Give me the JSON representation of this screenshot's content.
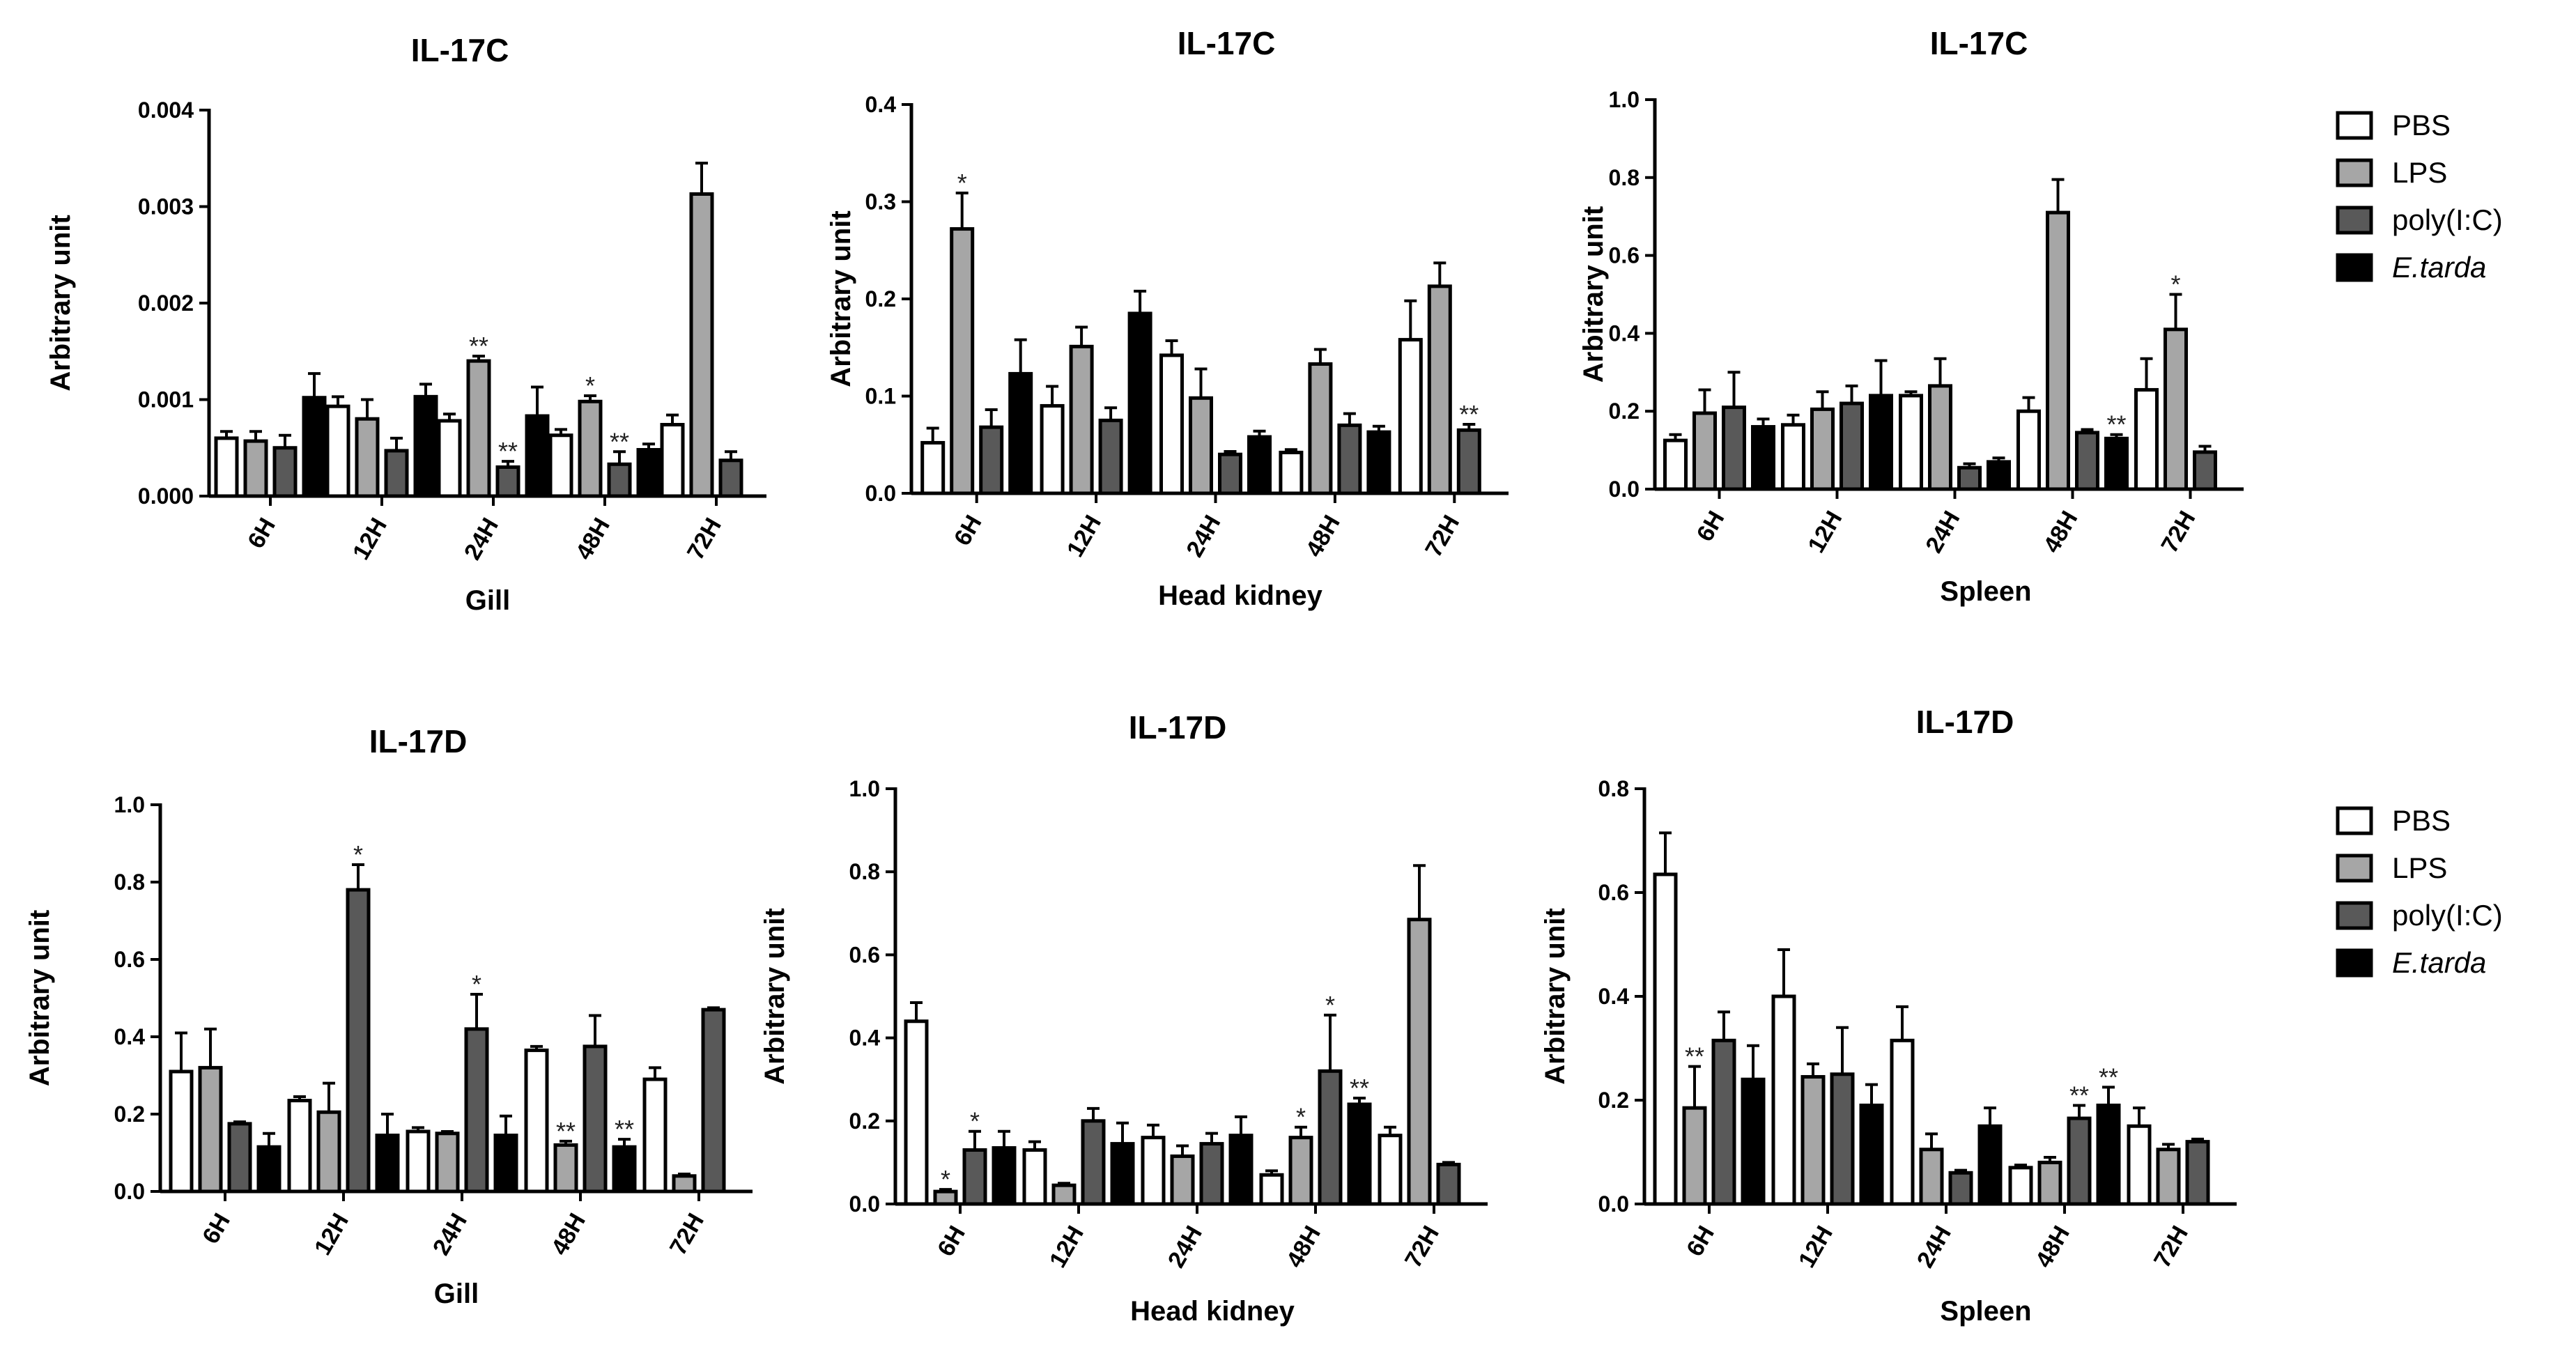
{
  "colors": {
    "PBS": "#ffffff",
    "LPS": "#a6a6a6",
    "poly(I:C)": "#595959",
    "E.tarda": "#000000",
    "axis": "#000000"
  },
  "legends": [
    {
      "entries": [
        "PBS",
        "LPS",
        "poly(I:C)",
        "E.tarda"
      ]
    },
    {
      "entries": [
        "PBS",
        "LPS",
        "poly(I:C)",
        "E.tarda"
      ]
    }
  ],
  "chart_data": [
    {
      "type": "bar",
      "title": "IL-17C",
      "xlabel": "Gill",
      "ylabel": "Arbitrary unit",
      "ylim": [
        0,
        0.004
      ],
      "yticks": [
        0,
        0.001,
        0.002,
        0.003,
        0.004
      ],
      "ytick_labels": [
        "0.000",
        "0.001",
        "0.002",
        "0.003",
        "0.004"
      ],
      "categories": [
        "6H",
        "12H",
        "24H",
        "48H",
        "72H"
      ],
      "series": [
        {
          "name": "PBS",
          "values": [
            0.0006,
            0.00093,
            0.00078,
            0.00063,
            0.00074
          ],
          "errors": [
            7e-05,
            0.0001,
            7e-05,
            6e-05,
            0.0001
          ],
          "stars": [
            "",
            "",
            "",
            "",
            ""
          ]
        },
        {
          "name": "LPS",
          "values": [
            0.00057,
            0.0008,
            0.0014,
            0.00098,
            0.00313
          ],
          "errors": [
            0.0001,
            0.0002,
            5e-05,
            6e-05,
            0.00032
          ],
          "stars": [
            "",
            "",
            "**",
            "*",
            ""
          ]
        },
        {
          "name": "poly(I:C)",
          "values": [
            0.0005,
            0.00047,
            0.0003,
            0.00033,
            0.00037
          ],
          "errors": [
            0.00013,
            0.00013,
            6e-05,
            0.00013,
            9e-05
          ],
          "stars": [
            "",
            "",
            "**",
            "**",
            ""
          ]
        },
        {
          "name": "E.tarda",
          "values": [
            0.00102,
            0.00103,
            0.00083,
            0.00048,
            null
          ],
          "errors": [
            0.00025,
            0.00013,
            0.0003,
            6e-05,
            null
          ],
          "stars": [
            "",
            "",
            "",
            "",
            ""
          ]
        }
      ]
    },
    {
      "type": "bar",
      "title": "IL-17C",
      "xlabel": "Head kidney",
      "ylabel": "Arbitrary unit",
      "ylim": [
        0,
        0.4
      ],
      "yticks": [
        0,
        0.1,
        0.2,
        0.3,
        0.4
      ],
      "ytick_labels": [
        "0.0",
        "0.1",
        "0.2",
        "0.3",
        "0.4"
      ],
      "categories": [
        "6H",
        "12H",
        "24H",
        "48H",
        "72H"
      ],
      "series": [
        {
          "name": "PBS",
          "values": [
            0.052,
            0.09,
            0.142,
            0.042,
            0.158
          ],
          "errors": [
            0.015,
            0.02,
            0.015,
            0.003,
            0.04
          ],
          "stars": [
            "",
            "",
            "",
            "",
            ""
          ]
        },
        {
          "name": "LPS",
          "values": [
            0.272,
            0.151,
            0.098,
            0.133,
            0.213
          ],
          "errors": [
            0.037,
            0.02,
            0.03,
            0.015,
            0.024
          ],
          "stars": [
            "*",
            "",
            "",
            "",
            ""
          ]
        },
        {
          "name": "poly(I:C)",
          "values": [
            0.068,
            0.075,
            0.04,
            0.07,
            0.065
          ],
          "errors": [
            0.018,
            0.013,
            0.003,
            0.012,
            0.006
          ],
          "stars": [
            "",
            "",
            "",
            "",
            "**"
          ]
        },
        {
          "name": "E.tarda",
          "values": [
            0.123,
            0.185,
            0.058,
            0.063,
            null
          ],
          "errors": [
            0.035,
            0.023,
            0.006,
            0.006,
            null
          ],
          "stars": [
            "",
            "",
            "",
            "",
            ""
          ]
        }
      ]
    },
    {
      "type": "bar",
      "title": "IL-17C",
      "xlabel": "Spleen",
      "ylabel": "Arbitrary unit",
      "ylim": [
        0,
        1.0
      ],
      "yticks": [
        0,
        0.2,
        0.4,
        0.6,
        0.8,
        1.0
      ],
      "ytick_labels": [
        "0.0",
        "0.2",
        "0.4",
        "0.6",
        "0.8",
        "1.0"
      ],
      "categories": [
        "6H",
        "12H",
        "24H",
        "48H",
        "72H"
      ],
      "series": [
        {
          "name": "PBS",
          "values": [
            0.125,
            0.165,
            0.24,
            0.2,
            0.255
          ],
          "errors": [
            0.015,
            0.025,
            0.01,
            0.035,
            0.08
          ],
          "stars": [
            "",
            "",
            "",
            "",
            ""
          ]
        },
        {
          "name": "LPS",
          "values": [
            0.195,
            0.205,
            0.265,
            0.71,
            0.41
          ],
          "errors": [
            0.06,
            0.045,
            0.07,
            0.085,
            0.09
          ],
          "stars": [
            "",
            "",
            "",
            "",
            "*"
          ]
        },
        {
          "name": "poly(I:C)",
          "values": [
            0.21,
            0.22,
            0.055,
            0.145,
            0.095
          ],
          "errors": [
            0.09,
            0.045,
            0.01,
            0.008,
            0.015
          ],
          "stars": [
            "",
            "",
            "",
            "",
            ""
          ]
        },
        {
          "name": "E.tarda",
          "values": [
            0.16,
            0.24,
            0.07,
            0.13,
            null
          ],
          "errors": [
            0.02,
            0.09,
            0.01,
            0.01,
            null
          ],
          "stars": [
            "",
            "",
            "",
            "**",
            ""
          ]
        }
      ]
    },
    {
      "type": "bar",
      "title": "IL-17D",
      "xlabel": "Gill",
      "ylabel": "Arbitrary unit",
      "ylim": [
        0,
        1.0
      ],
      "yticks": [
        0,
        0.2,
        0.4,
        0.6,
        0.8,
        1.0
      ],
      "ytick_labels": [
        "0.0",
        "0.2",
        "0.4",
        "0.6",
        "0.8",
        "1.0"
      ],
      "categories": [
        "6H",
        "12H",
        "24H",
        "48H",
        "72H"
      ],
      "series": [
        {
          "name": "PBS",
          "values": [
            0.31,
            0.235,
            0.155,
            0.365,
            0.29
          ],
          "errors": [
            0.1,
            0.01,
            0.01,
            0.01,
            0.03
          ],
          "stars": [
            "",
            "",
            "",
            "",
            ""
          ]
        },
        {
          "name": "LPS",
          "values": [
            0.32,
            0.205,
            0.15,
            0.12,
            0.04
          ],
          "errors": [
            0.1,
            0.075,
            0.005,
            0.01,
            0.005
          ],
          "stars": [
            "",
            "",
            "",
            "**",
            ""
          ]
        },
        {
          "name": "poly(I:C)",
          "values": [
            0.175,
            0.78,
            0.42,
            0.375,
            0.47
          ],
          "errors": [
            0.005,
            0.065,
            0.09,
            0.08,
            0.005
          ],
          "stars": [
            "",
            "*",
            "*",
            "",
            ""
          ]
        },
        {
          "name": "E.tarda",
          "values": [
            0.115,
            0.145,
            0.145,
            0.115,
            null
          ],
          "errors": [
            0.035,
            0.055,
            0.05,
            0.02,
            null
          ],
          "stars": [
            "",
            "",
            "",
            "**",
            ""
          ]
        }
      ]
    },
    {
      "type": "bar",
      "title": "IL-17D",
      "xlabel": "Head kidney",
      "ylabel": "Arbitrary unit",
      "ylim": [
        0,
        1.0
      ],
      "yticks": [
        0,
        0.2,
        0.4,
        0.6,
        0.8,
        1.0
      ],
      "ytick_labels": [
        "0.0",
        "0.2",
        "0.4",
        "0.6",
        "0.8",
        "1.0"
      ],
      "categories": [
        "6H",
        "12H",
        "24H",
        "48H",
        "72H"
      ],
      "series": [
        {
          "name": "PBS",
          "values": [
            0.44,
            0.13,
            0.16,
            0.07,
            0.165
          ],
          "errors": [
            0.045,
            0.02,
            0.03,
            0.01,
            0.02
          ],
          "stars": [
            "",
            "",
            "",
            "",
            ""
          ]
        },
        {
          "name": "LPS",
          "values": [
            0.03,
            0.045,
            0.115,
            0.16,
            0.685
          ],
          "errors": [
            0.005,
            0.005,
            0.025,
            0.025,
            0.13
          ],
          "stars": [
            "*",
            "",
            "",
            "*",
            ""
          ]
        },
        {
          "name": "poly(I:C)",
          "values": [
            0.13,
            0.2,
            0.145,
            0.32,
            0.095
          ],
          "errors": [
            0.045,
            0.03,
            0.025,
            0.135,
            0.005
          ],
          "stars": [
            "*",
            "",
            "",
            "*",
            ""
          ]
        },
        {
          "name": "E.tarda",
          "values": [
            0.135,
            0.145,
            0.165,
            0.24,
            null
          ],
          "errors": [
            0.04,
            0.05,
            0.045,
            0.015,
            null
          ],
          "stars": [
            "",
            "",
            "",
            "**",
            ""
          ]
        }
      ]
    },
    {
      "type": "bar",
      "title": "IL-17D",
      "xlabel": "Spleen",
      "ylabel": "Arbitrary unit",
      "ylim": [
        0,
        0.8
      ],
      "yticks": [
        0,
        0.2,
        0.4,
        0.6,
        0.8
      ],
      "ytick_labels": [
        "0.0",
        "0.2",
        "0.4",
        "0.6",
        "0.8"
      ],
      "categories": [
        "6H",
        "12H",
        "24H",
        "48H",
        "72H"
      ],
      "series": [
        {
          "name": "PBS",
          "values": [
            0.635,
            0.4,
            0.315,
            0.07,
            0.15
          ],
          "errors": [
            0.08,
            0.09,
            0.065,
            0.005,
            0.035
          ],
          "stars": [
            "",
            "",
            "",
            "",
            ""
          ]
        },
        {
          "name": "LPS",
          "values": [
            0.185,
            0.245,
            0.105,
            0.08,
            0.105
          ],
          "errors": [
            0.08,
            0.025,
            0.03,
            0.01,
            0.01
          ],
          "stars": [
            "**",
            "",
            "",
            "",
            ""
          ]
        },
        {
          "name": "poly(I:C)",
          "values": [
            0.315,
            0.25,
            0.06,
            0.165,
            0.12
          ],
          "errors": [
            0.055,
            0.09,
            0.005,
            0.025,
            0.005
          ],
          "stars": [
            "",
            "",
            "",
            "**",
            ""
          ]
        },
        {
          "name": "E.tarda",
          "values": [
            0.24,
            0.19,
            0.15,
            0.19,
            null
          ],
          "errors": [
            0.065,
            0.04,
            0.035,
            0.035,
            null
          ],
          "stars": [
            "",
            "",
            "",
            "**",
            ""
          ]
        }
      ]
    }
  ]
}
